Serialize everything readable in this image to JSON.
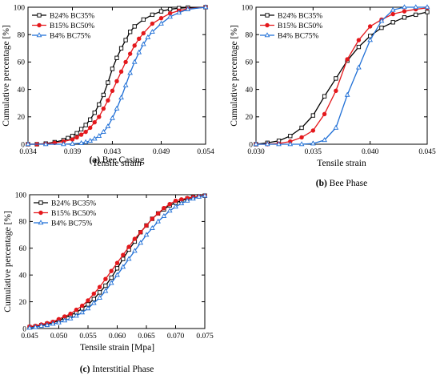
{
  "colors": {
    "black": "#000000",
    "red": "#e4181c",
    "blue": "#1f6fd6"
  },
  "markers": [
    "open-square",
    "filled-circle",
    "open-triangle"
  ],
  "chart_data": [
    {
      "type": "line",
      "caption_letter": "(a)",
      "caption_text": "Bee Casing",
      "xlabel": "Tensile strain",
      "ylabel": "Cumulative percentage [%]",
      "xlim": [
        0.034,
        0.054
      ],
      "ylim": [
        0,
        100
      ],
      "xticks": [
        "0.034",
        "0.039",
        "0.043",
        "0.049",
        "0.054"
      ],
      "xtick_values": [
        0.034,
        0.039,
        0.0435,
        0.049,
        0.054
      ],
      "yticks": [
        "0",
        "20",
        "40",
        "60",
        "80",
        "100"
      ],
      "legend_position": "top-left",
      "series": [
        {
          "name": "B24% BC35%",
          "color": "#000000",
          "marker": "open-square",
          "x": [
            0.034,
            0.035,
            0.036,
            0.037,
            0.038,
            0.0385,
            0.039,
            0.0395,
            0.04,
            0.0405,
            0.041,
            0.0415,
            0.042,
            0.0425,
            0.043,
            0.0435,
            0.044,
            0.0445,
            0.045,
            0.0455,
            0.046,
            0.047,
            0.048,
            0.049,
            0.05,
            0.051,
            0.052,
            0.054
          ],
          "y": [
            0,
            0,
            0.5,
            1.5,
            3,
            4.5,
            6,
            8,
            11,
            14,
            18,
            23,
            29,
            36,
            45,
            55,
            63,
            70,
            76,
            82,
            86,
            91,
            94.5,
            97,
            98.5,
            99.3,
            99.7,
            100
          ]
        },
        {
          "name": "B15% BC50%",
          "color": "#e4181c",
          "marker": "filled-circle",
          "x": [
            0.034,
            0.035,
            0.036,
            0.037,
            0.038,
            0.039,
            0.0395,
            0.04,
            0.0405,
            0.041,
            0.0415,
            0.042,
            0.0425,
            0.043,
            0.0435,
            0.044,
            0.0445,
            0.045,
            0.0455,
            0.046,
            0.0465,
            0.047,
            0.048,
            0.049,
            0.05,
            0.051,
            0.052,
            0.054
          ],
          "y": [
            0,
            0,
            0.3,
            1,
            2,
            3.5,
            5,
            7,
            9,
            12,
            16,
            20,
            26,
            32,
            39,
            46,
            53,
            60,
            66,
            72,
            77,
            81,
            88,
            92,
            95.5,
            97.5,
            98.8,
            100
          ]
        },
        {
          "name": "B4% BC75%",
          "color": "#1f6fd6",
          "marker": "open-triangle",
          "x": [
            0.034,
            0.036,
            0.038,
            0.039,
            0.04,
            0.0405,
            0.041,
            0.0415,
            0.042,
            0.0425,
            0.043,
            0.0435,
            0.044,
            0.0445,
            0.045,
            0.0455,
            0.046,
            0.0465,
            0.047,
            0.0475,
            0.048,
            0.049,
            0.05,
            0.051,
            0.052,
            0.054
          ],
          "y": [
            0,
            0,
            0,
            0.3,
            0.8,
            1.5,
            2.5,
            4,
            6,
            9,
            13,
            19,
            26,
            34,
            43,
            52,
            60,
            67,
            73,
            78,
            82,
            88,
            93,
            96,
            98.5,
            100
          ]
        }
      ]
    },
    {
      "type": "line",
      "caption_letter": "(b)",
      "caption_text": "Bee Phase",
      "xlabel": "Tensile strain",
      "ylabel": "Cumulative percentage [%]",
      "xlim": [
        0.03,
        0.045
      ],
      "ylim": [
        0,
        100
      ],
      "xticks": [
        "0.030",
        "0.035",
        "0.040",
        "0.045"
      ],
      "xtick_values": [
        0.03,
        0.035,
        0.04,
        0.045
      ],
      "yticks": [
        "0",
        "20",
        "40",
        "60",
        "80",
        "100"
      ],
      "legend_position": "top-left",
      "series": [
        {
          "name": "B24% BC35%",
          "color": "#000000",
          "marker": "open-square",
          "x": [
            0.03,
            0.031,
            0.032,
            0.033,
            0.034,
            0.035,
            0.036,
            0.037,
            0.038,
            0.039,
            0.04,
            0.041,
            0.042,
            0.043,
            0.044,
            0.045
          ],
          "y": [
            0,
            1,
            2.5,
            6,
            12,
            21,
            35,
            48,
            61,
            71,
            79,
            85,
            89,
            92.5,
            94.5,
            96.5
          ]
        },
        {
          "name": "B15% BC50%",
          "color": "#e4181c",
          "marker": "filled-circle",
          "x": [
            0.03,
            0.031,
            0.032,
            0.033,
            0.034,
            0.035,
            0.036,
            0.037,
            0.038,
            0.039,
            0.04,
            0.041,
            0.042,
            0.043,
            0.044,
            0.045
          ],
          "y": [
            0,
            0,
            0.5,
            2,
            5,
            10,
            22,
            39,
            62,
            76,
            86,
            91,
            95,
            97,
            98.5,
            99.5
          ]
        },
        {
          "name": "B4% BC75%",
          "color": "#1f6fd6",
          "marker": "open-triangle",
          "x": [
            0.03,
            0.031,
            0.032,
            0.033,
            0.034,
            0.035,
            0.036,
            0.037,
            0.038,
            0.039,
            0.04,
            0.041,
            0.042,
            0.043,
            0.044,
            0.045
          ],
          "y": [
            0,
            0,
            0,
            0,
            0,
            0.5,
            3,
            12,
            36,
            56,
            76,
            90,
            98,
            100,
            100,
            100
          ]
        }
      ]
    },
    {
      "type": "line",
      "caption_letter": "(c)",
      "caption_text": "Interstitial Phase",
      "xlabel": "Tensile strain [Mpa]",
      "ylabel": "Cumulative percentage [%]",
      "xlim": [
        0.045,
        0.075
      ],
      "ylim": [
        0,
        100
      ],
      "xticks": [
        "0.045",
        "0.050",
        "0.055",
        "0.060",
        "0.065",
        "0.070",
        "0.075"
      ],
      "xtick_values": [
        0.045,
        0.05,
        0.055,
        0.06,
        0.065,
        0.07,
        0.075
      ],
      "yticks": [
        "0",
        "20",
        "40",
        "60",
        "80",
        "100"
      ],
      "legend_position": "top-left",
      "series": [
        {
          "name": "B24% BC35%",
          "color": "#000000",
          "marker": "open-square",
          "x": [
            0.045,
            0.046,
            0.047,
            0.048,
            0.049,
            0.05,
            0.051,
            0.052,
            0.053,
            0.054,
            0.055,
            0.056,
            0.057,
            0.058,
            0.059,
            0.06,
            0.061,
            0.062,
            0.063,
            0.064,
            0.065,
            0.066,
            0.067,
            0.068,
            0.069,
            0.07,
            0.071,
            0.072,
            0.073,
            0.074,
            0.075
          ],
          "y": [
            1,
            1.5,
            2.5,
            3.5,
            4.5,
            6,
            8,
            10,
            12,
            15,
            18,
            22,
            27,
            32,
            38,
            45,
            52,
            59,
            65,
            72,
            77,
            82,
            86,
            89,
            92,
            94,
            95.5,
            97,
            98,
            98.8,
            99.3
          ]
        },
        {
          "name": "B15% BC50%",
          "color": "#e4181c",
          "marker": "filled-circle",
          "x": [
            0.045,
            0.046,
            0.047,
            0.048,
            0.049,
            0.05,
            0.051,
            0.052,
            0.053,
            0.054,
            0.055,
            0.056,
            0.057,
            0.058,
            0.059,
            0.06,
            0.061,
            0.062,
            0.063,
            0.064,
            0.065,
            0.066,
            0.067,
            0.068,
            0.069,
            0.07,
            0.071,
            0.072,
            0.073,
            0.074,
            0.075
          ],
          "y": [
            1.5,
            2,
            3,
            4,
            5,
            7,
            9,
            11,
            14,
            17,
            21,
            26,
            31,
            37,
            43,
            49,
            55,
            61,
            67,
            72,
            77,
            82,
            86,
            90,
            93,
            95.5,
            96.5,
            97.5,
            98.2,
            98.8,
            99.3
          ]
        },
        {
          "name": "B4% BC75%",
          "color": "#1f6fd6",
          "marker": "open-triangle",
          "x": [
            0.045,
            0.046,
            0.047,
            0.048,
            0.049,
            0.05,
            0.051,
            0.052,
            0.053,
            0.054,
            0.055,
            0.056,
            0.057,
            0.058,
            0.059,
            0.06,
            0.061,
            0.062,
            0.063,
            0.064,
            0.065,
            0.066,
            0.067,
            0.068,
            0.069,
            0.07,
            0.071,
            0.072,
            0.073,
            0.074,
            0.075
          ],
          "y": [
            0.5,
            1,
            2,
            2.5,
            3.5,
            4.5,
            6,
            7.5,
            9.5,
            12,
            15,
            19,
            23,
            28,
            34,
            40,
            46,
            52,
            58,
            64,
            70,
            75,
            80,
            84,
            88,
            91,
            93.5,
            95.5,
            97,
            98.5,
            99.2
          ]
        }
      ]
    }
  ]
}
